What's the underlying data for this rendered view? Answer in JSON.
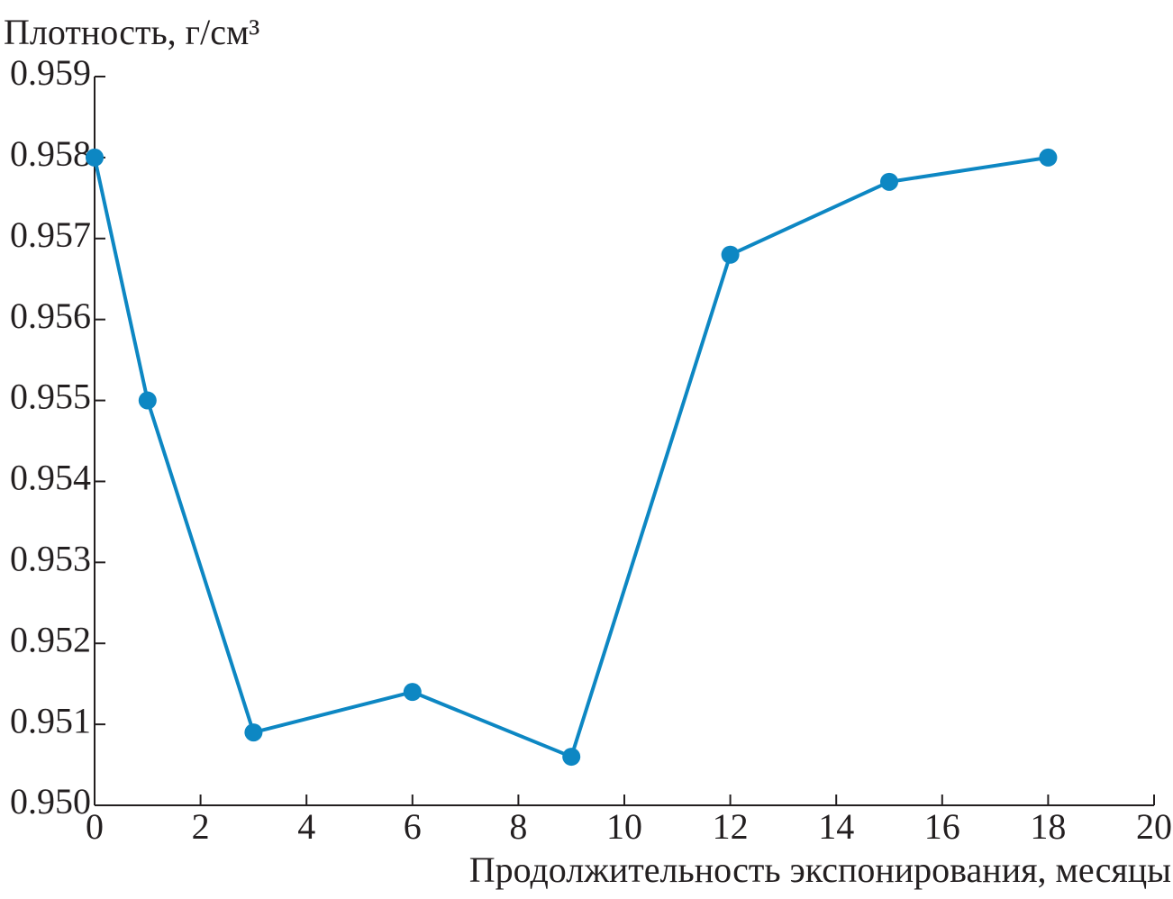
{
  "chart_data": {
    "type": "line",
    "y_label": "Плотность, г/см³",
    "x_label": "Продолжительность экспонирования, месяцы",
    "x": [
      0,
      1,
      3,
      6,
      9,
      12,
      15,
      18
    ],
    "series": [
      {
        "color": "#0d87c3",
        "values": [
          0.958,
          0.955,
          0.9509,
          0.9514,
          0.9506,
          0.9568,
          0.9577,
          0.958
        ]
      }
    ],
    "xlim": [
      0,
      20
    ],
    "xticks": [
      0,
      2,
      4,
      6,
      8,
      10,
      12,
      14,
      16,
      18,
      20
    ],
    "ylim": [
      0.95,
      0.959
    ],
    "yticks": [
      {
        "value": 0.95,
        "label": "0.950"
      },
      0.951,
      0.952,
      0.953,
      0.954,
      0.955,
      0.956,
      0.957,
      0.958,
      0.959
    ],
    "grid": false
  }
}
